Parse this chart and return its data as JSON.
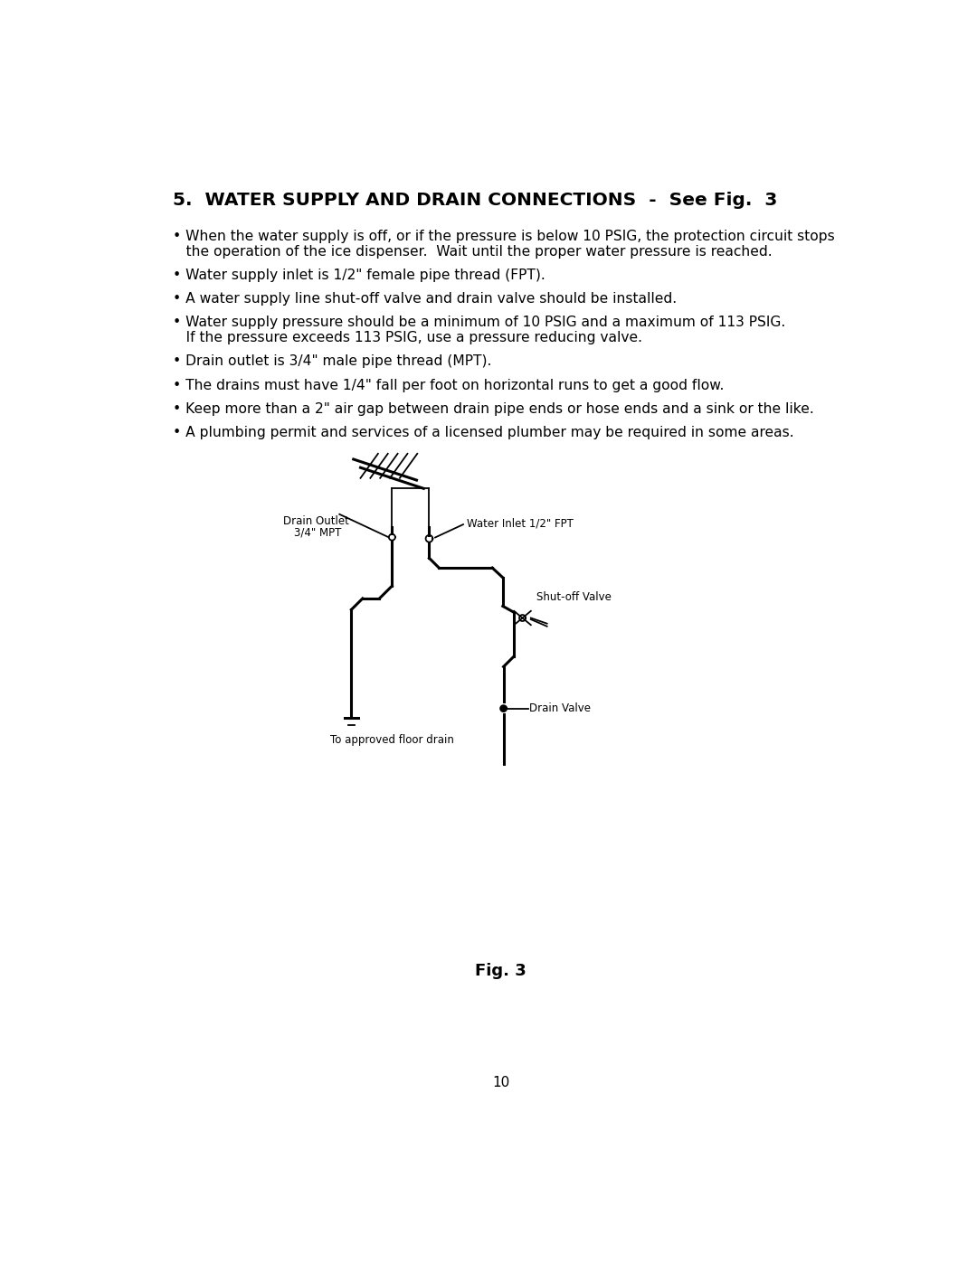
{
  "bg_color": "#ffffff",
  "title": "5.  WATER SUPPLY AND DRAIN CONNECTIONS  -  See Fig.  3",
  "bullets": [
    [
      "• When the water supply is off, or if the pressure is below 10 PSIG, the protection circuit stops",
      "   the operation of the ice dispenser.  Wait until the proper water pressure is reached."
    ],
    [
      "• Water supply inlet is 1/2\" female pipe thread (FPT)."
    ],
    [
      "• A water supply line shut-off valve and drain valve should be installed."
    ],
    [
      "• Water supply pressure should be a minimum of 10 PSIG and a maximum of 113 PSIG.",
      "   If the pressure exceeds 113 PSIG, use a pressure reducing valve."
    ],
    [
      "• Drain outlet is 3/4\" male pipe thread (MPT)."
    ],
    [
      "• The drains must have 1/4\" fall per foot on horizontal runs to get a good flow."
    ],
    [
      "• Keep more than a 2\" air gap between drain pipe ends or hose ends and a sink or the like."
    ],
    [
      "• A plumbing permit and services of a licensed plumber may be required in some areas."
    ]
  ],
  "fig_caption": "Fig. 3",
  "page_number": "10",
  "water_inlet_label": "Water Inlet 1/2\" FPT",
  "drain_outlet_label1": "Drain Outlet",
  "drain_outlet_label2": "3/4\" MPT",
  "shutoff_valve_label": "Shut-off Valve",
  "drain_valve_label": "Drain Valve",
  "floor_drain_label": "To approved floor drain"
}
